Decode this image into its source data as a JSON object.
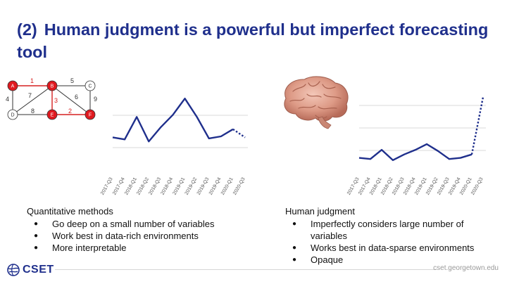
{
  "slide": {
    "title_num": "(2)",
    "title_text": "Human judgment is a powerful but imperfect forecasting tool"
  },
  "graph": {
    "nodes": [
      "A",
      "B",
      "C",
      "D",
      "E",
      "F"
    ],
    "edge_weights": [
      "1",
      "5",
      "4",
      "7",
      "6",
      "9",
      "3",
      "8",
      "2"
    ]
  },
  "left_chart": {
    "categories": [
      "2017-Q3",
      "2017-Q4",
      "2018-Q1",
      "2018-Q2",
      "2018-Q3",
      "2018-Q4",
      "2019-Q1",
      "2019-Q2",
      "2019-Q3",
      "2019-Q4",
      "2020-Q1",
      "2020-Q3"
    ],
    "values": [
      3.0,
      2.8,
      5.0,
      2.6,
      4.0,
      5.2,
      6.8,
      5.0,
      2.9,
      3.1,
      3.8,
      3.0
    ],
    "forecast_from_index": 10,
    "line_color": "#1f2f8c"
  },
  "right_chart": {
    "categories": [
      "2017-Q3",
      "2017-Q4",
      "2018-Q1",
      "2018-Q2",
      "2018-Q3",
      "2018-Q4",
      "2019-Q1",
      "2019-Q2",
      "2019-Q3",
      "2019-Q4",
      "2020-Q1",
      "2020-Q3"
    ],
    "values": [
      1.2,
      1.1,
      1.9,
      1.0,
      1.5,
      1.9,
      2.4,
      1.8,
      1.1,
      1.2,
      1.5,
      6.5
    ],
    "forecast_from_index": 10,
    "line_color": "#1f2f8c"
  },
  "quant": {
    "heading": "Quantitative methods",
    "items": [
      "Go deep on a small number of variables",
      "Work best in data-rich environments",
      "More interpretable"
    ]
  },
  "human": {
    "heading": "Human judgment",
    "items": [
      "Imperfectly considers large number of variables",
      "Works best in data-sparse environments",
      "Opaque"
    ]
  },
  "footer": {
    "logo": "CSET",
    "url": "cset.georgetown.edu"
  },
  "colors": {
    "title": "#1f2f8c",
    "node_red": "#e0191f",
    "edge_red": "#d62020"
  }
}
